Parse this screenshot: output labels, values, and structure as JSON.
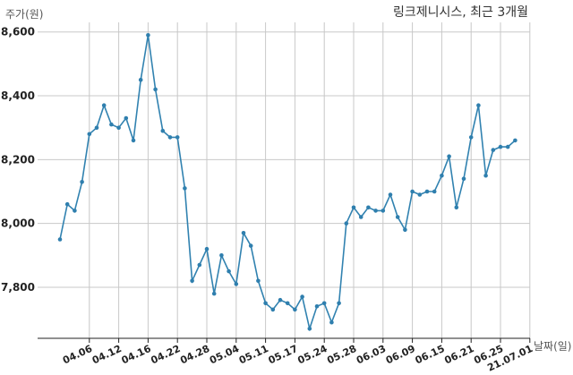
{
  "chart_data": {
    "type": "line",
    "title": "링크제니시스, 최근 3개월",
    "ylabel": "주가(원)",
    "xlabel": "날짜(일)",
    "ylim": [
      7640,
      8630
    ],
    "yticks": [
      7800,
      8000,
      8200,
      8400,
      8600
    ],
    "ytick_labels": [
      "7,800",
      "8,000",
      "8,200",
      "8,400",
      "8,600"
    ],
    "grid": true,
    "xtick_labels": [
      "04.06",
      "04.12",
      "04.16",
      "04.22",
      "04.28",
      "05.04",
      "05.11",
      "05.17",
      "05.24",
      "05.28",
      "06.03",
      "06.09",
      "06.15",
      "06.21",
      "06.25",
      "21.07.01"
    ],
    "xtick_index": [
      4,
      8,
      12,
      16,
      20,
      24,
      28,
      32,
      36,
      40,
      44,
      48,
      52,
      56,
      60,
      64
    ],
    "series": [
      {
        "color": "#3182b0",
        "values": [
          7950,
          8060,
          8040,
          8130,
          8280,
          8300,
          8370,
          8310,
          8300,
          8330,
          8260,
          8450,
          8590,
          8420,
          8290,
          8270,
          8270,
          8110,
          7820,
          7870,
          7920,
          7780,
          7900,
          7850,
          7810,
          7970,
          7930,
          7820,
          7750,
          7730,
          7760,
          7750,
          7730,
          7770,
          7670,
          7740,
          7750,
          7690,
          7750,
          8000,
          8050,
          8020,
          8050,
          8040,
          8040,
          8090,
          8020,
          7980,
          8100,
          8090,
          8100,
          8100,
          8150,
          8210,
          8050,
          8140,
          8270,
          8370,
          8150,
          8230,
          8240,
          8240,
          8260
        ]
      }
    ]
  }
}
